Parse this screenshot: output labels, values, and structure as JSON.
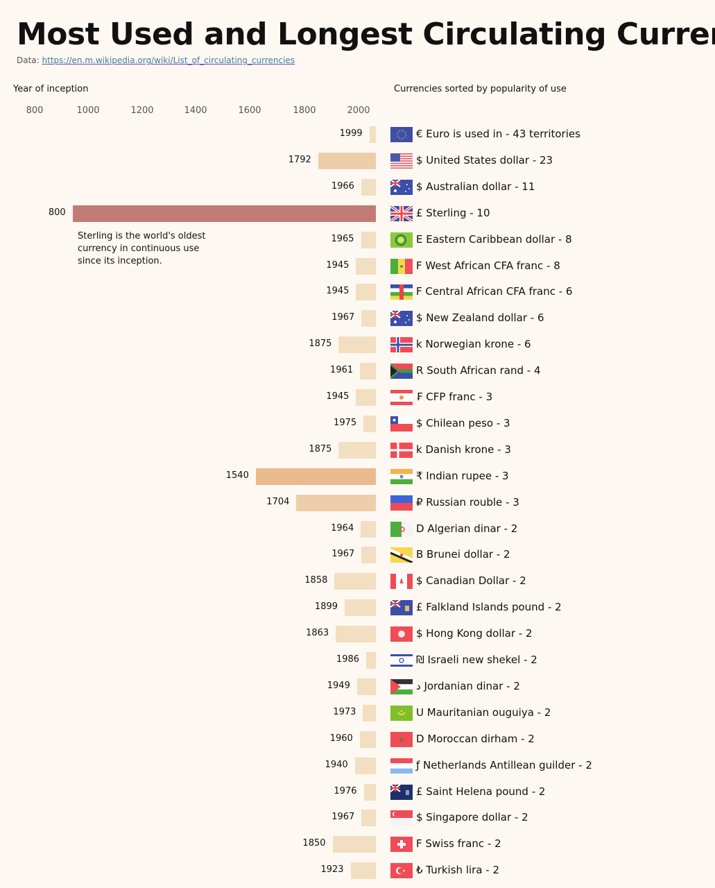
{
  "header": {
    "title": "Most Used and Longest Circulating Currencies",
    "source_prefix": "Data:",
    "source_link": "https://en.m.wikipedia.org/wiki/List_of_circulating_currencies"
  },
  "chart_data": {
    "type": "bar",
    "orientation": "horizontal",
    "title": "Most Used and Longest Circulating Currencies",
    "xlabel": "Year of inception",
    "ylabel": "Currencies sorted by popularity of use",
    "xticks": [
      "800",
      "1000",
      "1200",
      "1400",
      "1600",
      "1800",
      "2000"
    ],
    "xlim": [
      800,
      2025
    ],
    "annotation": "Sterling is the world's oldest currency in continuous use since its inception.",
    "highlight": {
      "category": "Sterling",
      "color": "#c27b74"
    },
    "colors": {
      "default": "#f2dfc1",
      "mid": "#eeceaa",
      "old": "#e9ba8c"
    },
    "series": [
      {
        "symbol": "€",
        "name": "Euro is used in",
        "count": "43 territories",
        "year": 1999,
        "flag": "eu"
      },
      {
        "symbol": "$",
        "name": "United States dollar",
        "count": "23",
        "year": 1792,
        "flag": "us"
      },
      {
        "symbol": "$",
        "name": "Australian dollar",
        "count": "11",
        "year": 1966,
        "flag": "au"
      },
      {
        "symbol": "£",
        "name": "Sterling",
        "count": "10",
        "year": 800,
        "flag": "gb"
      },
      {
        "symbol": "E",
        "name": "Eastern Caribbean dollar",
        "count": "8",
        "year": 1965,
        "flag": "ec"
      },
      {
        "symbol": "F",
        "name": "West African CFA franc",
        "count": "8",
        "year": 1945,
        "flag": "sn"
      },
      {
        "symbol": "F",
        "name": "Central African CFA franc",
        "count": "6",
        "year": 1945,
        "flag": "cf"
      },
      {
        "symbol": "$",
        "name": "New Zealand dollar",
        "count": "6",
        "year": 1967,
        "flag": "au"
      },
      {
        "symbol": "k",
        "name": "Norwegian krone",
        "count": "6",
        "year": 1875,
        "flag": "no"
      },
      {
        "symbol": "R",
        "name": "South African rand",
        "count": "4",
        "year": 1961,
        "flag": "za"
      },
      {
        "symbol": "₣",
        "name": "CFP franc",
        "count": "3",
        "year": 1945,
        "flag": "pf"
      },
      {
        "symbol": "$",
        "name": "Chilean peso",
        "count": "3",
        "year": 1975,
        "flag": "cl"
      },
      {
        "symbol": "k",
        "name": "Danish krone",
        "count": "3",
        "year": 1875,
        "flag": "dk"
      },
      {
        "symbol": "₹",
        "name": "Indian rupee",
        "count": "3",
        "year": 1540,
        "flag": "in"
      },
      {
        "symbol": "₽",
        "name": "Russian rouble",
        "count": "3",
        "year": 1704,
        "flag": "ru"
      },
      {
        "symbol": "D",
        "name": "Algerian dinar",
        "count": "2",
        "year": 1964,
        "flag": "dz"
      },
      {
        "symbol": "B",
        "name": "Brunei dollar",
        "count": "2",
        "year": 1967,
        "flag": "bn"
      },
      {
        "symbol": "$",
        "name": "Canadian Dollar",
        "count": "2",
        "year": 1858,
        "flag": "ca"
      },
      {
        "symbol": "£",
        "name": "Falkland Islands pound",
        "count": "2",
        "year": 1899,
        "flag": "fk"
      },
      {
        "symbol": "$",
        "name": "Hong Kong dollar",
        "count": "2",
        "year": 1863,
        "flag": "hk"
      },
      {
        "symbol": "₪",
        "name": "Israeli new shekel",
        "count": "2",
        "year": 1986,
        "flag": "il"
      },
      {
        "symbol": "د",
        "name": "Jordanian dinar",
        "count": "2",
        "year": 1949,
        "flag": "jo"
      },
      {
        "symbol": "U",
        "name": "Mauritanian ouguiya",
        "count": "2",
        "year": 1973,
        "flag": "mr"
      },
      {
        "symbol": "D",
        "name": "Moroccan dirham",
        "count": "2",
        "year": 1960,
        "flag": "ma"
      },
      {
        "symbol": "ƒ",
        "name": "Netherlands Antillean guilder",
        "count": "2",
        "year": 1940,
        "flag": "an"
      },
      {
        "symbol": "£",
        "name": "Saint Helena pound",
        "count": "2",
        "year": 1976,
        "flag": "sh"
      },
      {
        "symbol": "$",
        "name": "Singapore dollar",
        "count": "2",
        "year": 1967,
        "flag": "sg"
      },
      {
        "symbol": "F",
        "name": "Swiss franc",
        "count": "2",
        "year": 1850,
        "flag": "ch"
      },
      {
        "symbol": "₺",
        "name": "Turkish lira",
        "count": "2",
        "year": 1923,
        "flag": "tr"
      }
    ]
  }
}
